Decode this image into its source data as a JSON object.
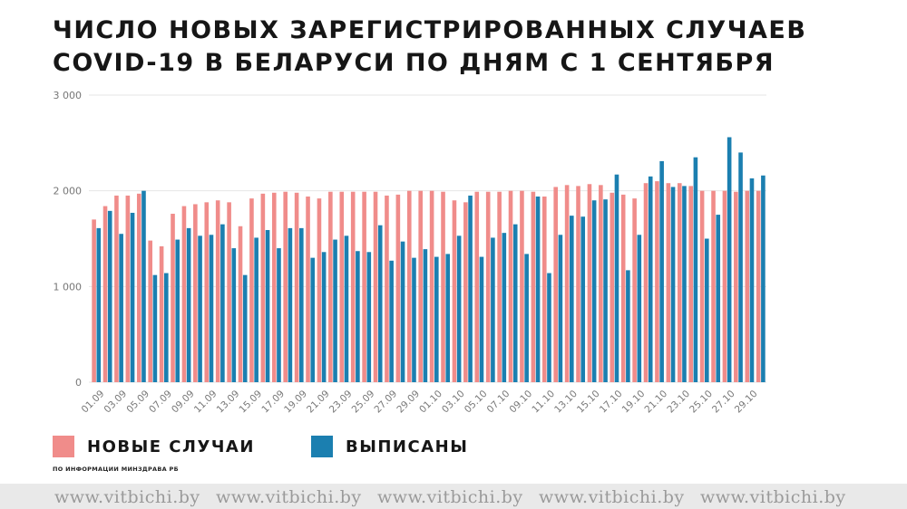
{
  "title_lines": [
    "ЧИСЛО НОВЫХ ЗАРЕГИСТРИРОВАННЫХ СЛУЧАЕВ",
    "COVID-19 В БЕЛАРУСИ ПО ДНЯМ С 1 СЕНТЯБРЯ"
  ],
  "legend": {
    "new_cases": "НОВЫЕ СЛУЧАИ",
    "discharged": "ВЫПИСАНЫ"
  },
  "source": "ПО ИНФОРМАЦИИ МИНЗДРАВА РБ",
  "watermark": "www.vitbichi.by",
  "colors": {
    "new_cases": "#f08c8a",
    "discharged": "#1b7fb0",
    "grid": "#e6e6e6",
    "axis_text": "#777777"
  },
  "chart_data": {
    "type": "bar",
    "title": "ЧИСЛО НОВЫХ ЗАРЕГИСТРИРОВАННЫХ СЛУЧАЕВ COVID-19 В БЕЛАРУСИ ПО ДНЯМ С 1 СЕНТЯБРЯ",
    "ylim": [
      0,
      3000
    ],
    "y_ticks": [
      0,
      1000,
      2000,
      3000
    ],
    "y_tick_labels": [
      "0",
      "1 000",
      "2 000",
      "3 000"
    ],
    "grid": true,
    "legend_position": "bottom-left",
    "categories": [
      "01.09",
      "02.09",
      "03.09",
      "04.09",
      "05.09",
      "06.09",
      "07.09",
      "08.09",
      "09.09",
      "10.09",
      "11.09",
      "12.09",
      "13.09",
      "14.09",
      "15.09",
      "16.09",
      "17.09",
      "18.09",
      "19.09",
      "20.09",
      "21.09",
      "22.09",
      "23.09",
      "24.09",
      "25.09",
      "26.09",
      "27.09",
      "28.09",
      "29.09",
      "30.09",
      "01.10",
      "02.10",
      "03.10",
      "04.10",
      "05.10",
      "06.10",
      "07.10",
      "08.10",
      "09.10",
      "10.10",
      "11.10",
      "12.10",
      "13.10",
      "14.10",
      "15.10",
      "16.10",
      "17.10",
      "18.10",
      "19.10",
      "20.10",
      "21.10",
      "22.10",
      "23.10",
      "24.10",
      "25.10",
      "26.10",
      "27.10",
      "28.10",
      "29.10",
      "30.10"
    ],
    "x_tick_labels": [
      "01.09",
      "03.09",
      "05.09",
      "07.09",
      "09.09",
      "11.09",
      "13.09",
      "15.09",
      "17.09",
      "19.09",
      "21.09",
      "23.09",
      "25.09",
      "27.09",
      "29.09",
      "01.10",
      "03.10",
      "05.10",
      "07.10",
      "09.10",
      "11.10",
      "13.10",
      "15.10",
      "17.10",
      "19.10",
      "21.10",
      "23.10",
      "25.10",
      "27.10",
      "29.10"
    ],
    "series": [
      {
        "name": "НОВЫЕ СЛУЧАИ",
        "color": "#f08c8a",
        "values": [
          1700,
          1840,
          1950,
          1950,
          1970,
          1480,
          1420,
          1760,
          1840,
          1860,
          1880,
          1900,
          1880,
          1630,
          1920,
          1970,
          1980,
          1990,
          1980,
          1940,
          1920,
          1990,
          1990,
          1990,
          1990,
          1990,
          1950,
          1960,
          2000,
          2000,
          2000,
          1990,
          1900,
          1880,
          1990,
          1990,
          1990,
          2000,
          2000,
          1990,
          1940,
          2040,
          2060,
          2050,
          2070,
          2060,
          1980,
          1960,
          1920,
          2080,
          2100,
          2080,
          2080,
          2050,
          2000,
          2000,
          2000,
          1990,
          2000,
          2000
        ]
      },
      {
        "name": "ВЫПИСАНЫ",
        "color": "#1b7fb0",
        "values": [
          1610,
          1790,
          1550,
          1770,
          2000,
          1120,
          1140,
          1490,
          1610,
          1530,
          1540,
          1650,
          1400,
          1120,
          1510,
          1590,
          1400,
          1610,
          1610,
          1300,
          1360,
          1490,
          1530,
          1370,
          1360,
          1640,
          1270,
          1470,
          1300,
          1390,
          1310,
          1340,
          1530,
          1950,
          1310,
          1510,
          1560,
          1650,
          1340,
          1940,
          1140,
          1540,
          1740,
          1730,
          1900,
          1910,
          2170,
          1170,
          1540,
          2150,
          2310,
          2040,
          2050,
          2350,
          1500,
          1750,
          2560,
          2400,
          2130,
          2160
        ]
      }
    ]
  }
}
